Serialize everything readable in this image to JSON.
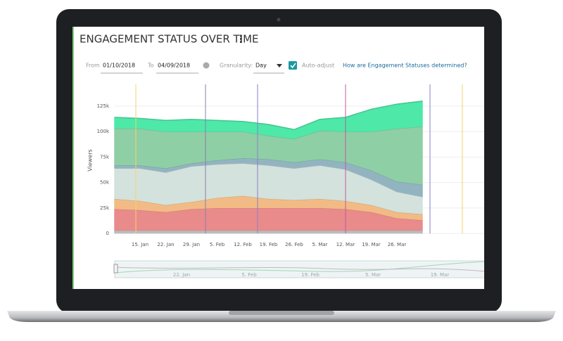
{
  "header": {
    "title": "ENGAGEMENT STATUS OVER TIME"
  },
  "controls": {
    "from_label": "From",
    "from_value": "01/10/2018",
    "to_label": "To",
    "to_value": "04/09/2018",
    "granularity_label": "Granularity:",
    "granularity_value": "Day",
    "auto_adjust": "Auto-adjust",
    "help_link": "How are Engagement Statuses determined?"
  },
  "navigator": {
    "labels": [
      "22. Jan",
      "5. Feb",
      "19. Feb",
      "5. Mar",
      "19. Mar"
    ]
  },
  "chart_data": {
    "type": "stacked-area",
    "y_label": "Viewers",
    "categories": [
      null,
      "15. Jan",
      "22. Jan",
      "29. Jan",
      "5. Feb",
      "12. Feb",
      "19. Feb",
      "26. Feb",
      "5. Mar",
      "12. Mar",
      "19. Mar",
      "26. Mar",
      null
    ],
    "ylim": [
      0,
      145000
    ],
    "yticks": [
      0,
      {
        "value": 25000,
        "label": "25k"
      },
      {
        "value": 50000,
        "label": "50k"
      },
      {
        "value": 75000,
        "label": "75k"
      },
      {
        "value": 100000,
        "label": "100k"
      },
      {
        "value": 125000,
        "label": "125k"
      }
    ],
    "grid": true,
    "series": [
      {
        "color": "#bdbdbd",
        "values": [
          3000,
          3000,
          3000,
          3000,
          3000,
          3000,
          3000,
          3000,
          3000,
          3000,
          3000,
          3000,
          3000
        ]
      },
      {
        "color": "#e98b8b",
        "values": [
          21000,
          20000,
          18000,
          21000,
          22000,
          22000,
          22000,
          22000,
          22000,
          21000,
          18000,
          12000,
          10000
        ]
      },
      {
        "color": "#f2bb85",
        "values": [
          10000,
          9000,
          7000,
          7000,
          10000,
          12000,
          9000,
          8000,
          9000,
          8000,
          7000,
          6000,
          6000
        ]
      },
      {
        "color": "#d3e2dc",
        "values": [
          30000,
          32000,
          32000,
          35000,
          33000,
          32000,
          33000,
          31000,
          33000,
          31000,
          25000,
          20000,
          17000
        ]
      },
      {
        "color": "#92b4c0",
        "values": [
          3000,
          3000,
          4000,
          3000,
          4000,
          5000,
          6000,
          6000,
          6000,
          7000,
          9000,
          10000,
          12000
        ]
      },
      {
        "color": "#8fcfa5",
        "values": [
          36000,
          36000,
          36000,
          31000,
          28000,
          26000,
          23000,
          23000,
          28000,
          30000,
          38000,
          52000,
          57000
        ]
      },
      {
        "color": "#4ee8a8",
        "values": [
          11000,
          10000,
          11000,
          12000,
          11000,
          10000,
          11000,
          9000,
          11000,
          14000,
          22000,
          24000,
          25000
        ]
      }
    ]
  }
}
